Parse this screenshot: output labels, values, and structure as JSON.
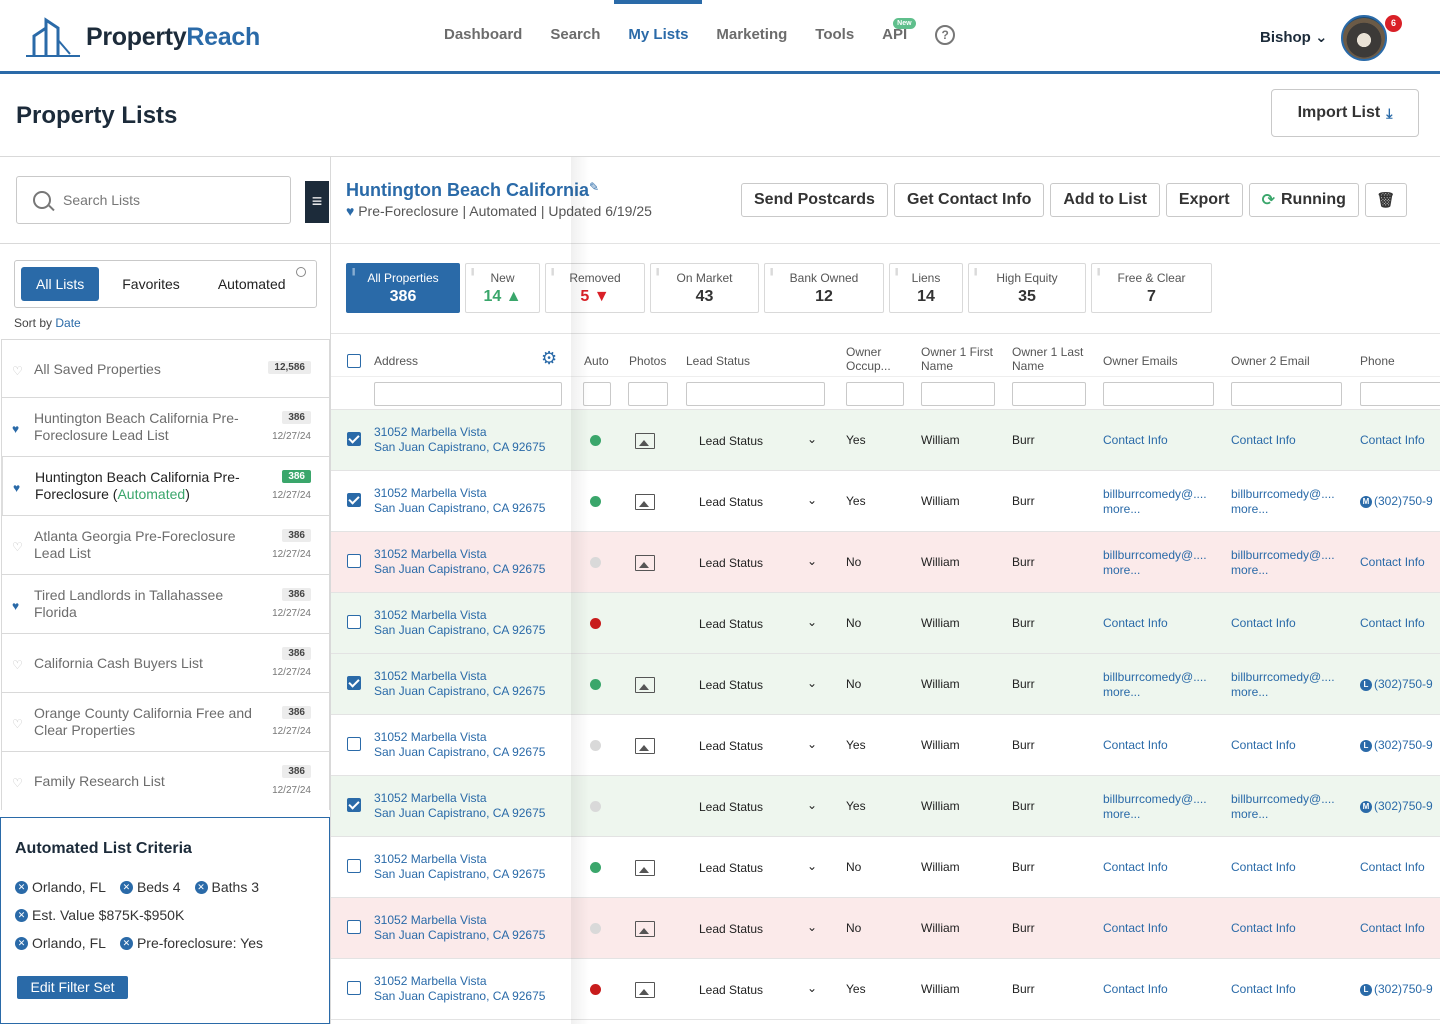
{
  "brand": {
    "name_part1": "Property",
    "name_part2": "Reach"
  },
  "nav": {
    "items": [
      "Dashboard",
      "Search",
      "My Lists",
      "Marketing",
      "Tools",
      "API"
    ],
    "active": "My Lists",
    "api_badge": "New",
    "help": "?"
  },
  "user": {
    "name": "Bishop",
    "notifications": "6"
  },
  "page": {
    "title": "Property Lists",
    "import_label": "Import List"
  },
  "sidebar": {
    "search_placeholder": "Search Lists",
    "tabs": [
      "All Lists",
      "Favorites",
      "Automated"
    ],
    "sort_label": "Sort by",
    "sort_value": "Date",
    "lists": [
      {
        "name": "All Saved Properties",
        "count": "12,586",
        "date": "",
        "fav": false
      },
      {
        "name": "Huntington Beach California Pre-Foreclosure Lead List",
        "count": "386",
        "date": "12/27/24",
        "fav": true
      },
      {
        "name": "Huntington Beach California Pre-Foreclosure (",
        "auto": "Automated",
        "close": ")",
        "count": "386",
        "date": "12/27/24",
        "fav": true,
        "selected": true
      },
      {
        "name": "Atlanta Georgia Pre-Foreclosure Lead List",
        "count": "386",
        "date": "12/27/24",
        "fav": false
      },
      {
        "name": "Tired Landlords in Tallahassee Florida",
        "count": "386",
        "date": "12/27/24",
        "fav": true
      },
      {
        "name": "California Cash Buyers List",
        "count": "386",
        "date": "12/27/24",
        "fav": false
      },
      {
        "name": "Orange County California Free and Clear Properties",
        "count": "386",
        "date": "12/27/24",
        "fav": false
      },
      {
        "name": "Family Research List",
        "count": "386",
        "date": "12/27/24",
        "fav": false
      }
    ],
    "criteria": {
      "title": "Automated List Criteria",
      "chips": [
        [
          "Orlando, FL",
          "Beds 4",
          "Baths 3"
        ],
        [
          "Est. Value $875K-$950K"
        ],
        [
          "Orlando, FL",
          "Pre-foreclosure: Yes"
        ]
      ],
      "edit_label": "Edit Filter Set"
    }
  },
  "list": {
    "title": "Huntington Beach California",
    "type": "Pre-Foreclosure",
    "mode": "Automated",
    "updated": "Updated 6/19/25",
    "actions": [
      "Send Postcards",
      "Get Contact Info",
      "Add to List",
      "Export",
      "Running"
    ],
    "stats": [
      {
        "label": "All Properties",
        "value": "386"
      },
      {
        "label": "New",
        "value": "14 ▲"
      },
      {
        "label": "Removed",
        "value": "5 ▼"
      },
      {
        "label": "On Market",
        "value": "43"
      },
      {
        "label": "Bank Owned",
        "value": "12"
      },
      {
        "label": "Liens",
        "value": "14"
      },
      {
        "label": "High Equity",
        "value": "35"
      },
      {
        "label": "Free & Clear",
        "value": "7"
      }
    ]
  },
  "table": {
    "headers": [
      "Address",
      "Auto",
      "Photos",
      "Lead Status",
      "Owner Occup...",
      "Owner 1 First Name",
      "Owner 1 Last Name",
      "Owner Emails",
      "Owner 2 Email",
      "Phone"
    ],
    "rows": [
      {
        "bg": "green",
        "checked": true,
        "a1": "31052 Marbella Vista",
        "a2": "San Juan Capistrano, CA 92675",
        "dot": "g",
        "photo": true,
        "status": "Lead Status",
        "occ": "Yes",
        "fn": "William",
        "ln": "Burr",
        "e1": [
          "Contact Info"
        ],
        "e2": [
          "Contact Info"
        ],
        "ph": "Contact Info",
        "badge": ""
      },
      {
        "bg": "white",
        "checked": true,
        "a1": "31052 Marbella Vista",
        "a2": "San Juan Capistrano, CA 92675",
        "dot": "g",
        "photo": true,
        "status": "Lead Status",
        "occ": "Yes",
        "fn": "William",
        "ln": "Burr",
        "e1": [
          "billburrcomedy@....",
          "more..."
        ],
        "e2": [
          "billburrcomedy@....",
          "more..."
        ],
        "ph": "(302)750-9",
        "badge": "M"
      },
      {
        "bg": "red",
        "checked": false,
        "a1": "31052 Marbella Vista",
        "a2": "San Juan Capistrano, CA 92675",
        "dot": "gr",
        "photo": true,
        "status": "Lead Status",
        "occ": "No",
        "fn": "William",
        "ln": "Burr",
        "e1": [
          "billburrcomedy@....",
          "more..."
        ],
        "e2": [
          "billburrcomedy@....",
          "more..."
        ],
        "ph": "Contact Info",
        "badge": ""
      },
      {
        "bg": "green",
        "checked": false,
        "a1": "31052 Marbella Vista",
        "a2": "San Juan Capistrano, CA 92675",
        "dot": "r",
        "photo": false,
        "status": "Lead Status",
        "occ": "No",
        "fn": "William",
        "ln": "Burr",
        "e1": [
          "Contact Info"
        ],
        "e2": [
          "Contact Info"
        ],
        "ph": "Contact Info",
        "badge": ""
      },
      {
        "bg": "green",
        "checked": true,
        "a1": "31052 Marbella Vista",
        "a2": "San Juan Capistrano, CA 92675",
        "dot": "g",
        "photo": true,
        "status": "Lead Status",
        "occ": "No",
        "fn": "William",
        "ln": "Burr",
        "e1": [
          "billburrcomedy@....",
          "more..."
        ],
        "e2": [
          "billburrcomedy@....",
          "more..."
        ],
        "ph": "(302)750-9",
        "badge": "L"
      },
      {
        "bg": "white",
        "checked": false,
        "a1": "31052 Marbella Vista",
        "a2": "San Juan Capistrano, CA 92675",
        "dot": "gr",
        "photo": true,
        "status": "Lead Status",
        "occ": "Yes",
        "fn": "William",
        "ln": "Burr",
        "e1": [
          "Contact Info"
        ],
        "e2": [
          "Contact Info"
        ],
        "ph": "(302)750-9",
        "badge": "L"
      },
      {
        "bg": "green",
        "checked": true,
        "a1": "31052 Marbella Vista",
        "a2": "San Juan Capistrano, CA 92675",
        "dot": "gr",
        "photo": false,
        "status": "Lead Status",
        "occ": "Yes",
        "fn": "William",
        "ln": "Burr",
        "e1": [
          "billburrcomedy@....",
          "more..."
        ],
        "e2": [
          "billburrcomedy@....",
          "more..."
        ],
        "ph": "(302)750-9",
        "badge": "M"
      },
      {
        "bg": "white",
        "checked": false,
        "a1": "31052 Marbella Vista",
        "a2": "San Juan Capistrano, CA 92675",
        "dot": "g",
        "photo": true,
        "status": "Lead Status",
        "occ": "No",
        "fn": "William",
        "ln": "Burr",
        "e1": [
          "Contact Info"
        ],
        "e2": [
          "Contact Info"
        ],
        "ph": "Contact Info",
        "badge": ""
      },
      {
        "bg": "red",
        "checked": false,
        "a1": "31052 Marbella Vista",
        "a2": "San Juan Capistrano, CA 92675",
        "dot": "gr",
        "photo": true,
        "status": "Lead Status",
        "occ": "No",
        "fn": "William",
        "ln": "Burr",
        "e1": [
          "Contact Info"
        ],
        "e2": [
          "Contact Info"
        ],
        "ph": "Contact Info",
        "badge": ""
      },
      {
        "bg": "white",
        "checked": false,
        "a1": "31052 Marbella Vista",
        "a2": "San Juan Capistrano, CA 92675",
        "dot": "r",
        "photo": true,
        "status": "Lead Status",
        "occ": "Yes",
        "fn": "William",
        "ln": "Burr",
        "e1": [
          "Contact Info"
        ],
        "e2": [
          "Contact Info"
        ],
        "ph": "(302)750-9",
        "badge": "L"
      }
    ]
  }
}
